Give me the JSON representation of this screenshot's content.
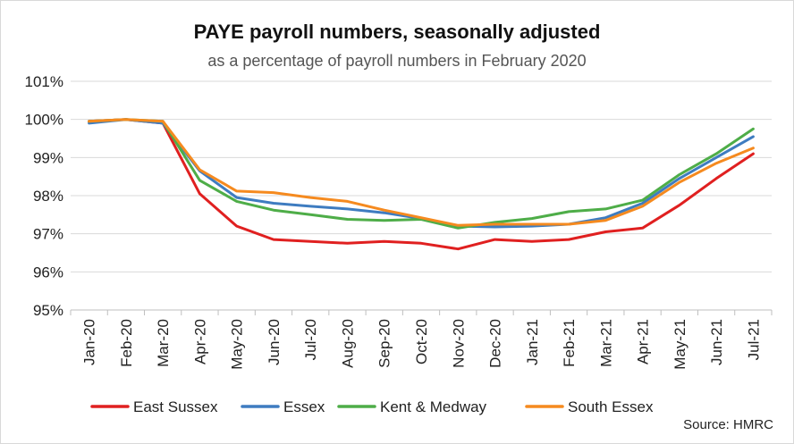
{
  "chart_data": {
    "type": "line",
    "title": "PAYE payroll numbers, seasonally adjusted",
    "subtitle": "as a percentage of payroll numbers in February 2020",
    "source": "Source: HMRC",
    "categories": [
      "Jan-20",
      "Feb-20",
      "Mar-20",
      "Apr-20",
      "May-20",
      "Jun-20",
      "Jul-20",
      "Aug-20",
      "Sep-20",
      "Oct-20",
      "Nov-20",
      "Dec-20",
      "Jan-21",
      "Feb-21",
      "Mar-21",
      "Apr-21",
      "May-21",
      "Jun-21",
      "Jul-21"
    ],
    "ylim": [
      95,
      101
    ],
    "yticks": [
      95,
      96,
      97,
      98,
      99,
      100,
      101
    ],
    "ytick_suffix": "%",
    "grid": true,
    "legend": "bottom",
    "series": [
      {
        "name": "East Sussex",
        "color": "#e02020",
        "values": [
          99.95,
          100.0,
          99.9,
          98.05,
          97.2,
          96.85,
          96.8,
          96.75,
          96.8,
          96.75,
          96.6,
          96.85,
          96.8,
          96.85,
          97.05,
          97.15,
          97.75,
          98.45,
          99.1
        ]
      },
      {
        "name": "Essex",
        "color": "#3e7cc0",
        "values": [
          99.9,
          100.0,
          99.9,
          98.65,
          97.95,
          97.8,
          97.72,
          97.65,
          97.55,
          97.4,
          97.2,
          97.18,
          97.2,
          97.25,
          97.42,
          97.8,
          98.45,
          99.0,
          99.55
        ]
      },
      {
        "name": "Kent & Medway",
        "color": "#4ead48",
        "values": [
          99.95,
          100.0,
          99.95,
          98.4,
          97.85,
          97.62,
          97.5,
          97.38,
          97.35,
          97.38,
          97.15,
          97.3,
          97.4,
          97.58,
          97.65,
          97.88,
          98.55,
          99.1,
          99.75
        ]
      },
      {
        "name": "South Essex",
        "color": "#f58a1f",
        "values": [
          99.95,
          100.0,
          99.95,
          98.68,
          98.12,
          98.08,
          97.95,
          97.85,
          97.62,
          97.42,
          97.22,
          97.25,
          97.25,
          97.25,
          97.35,
          97.72,
          98.35,
          98.85,
          99.25
        ]
      }
    ]
  }
}
